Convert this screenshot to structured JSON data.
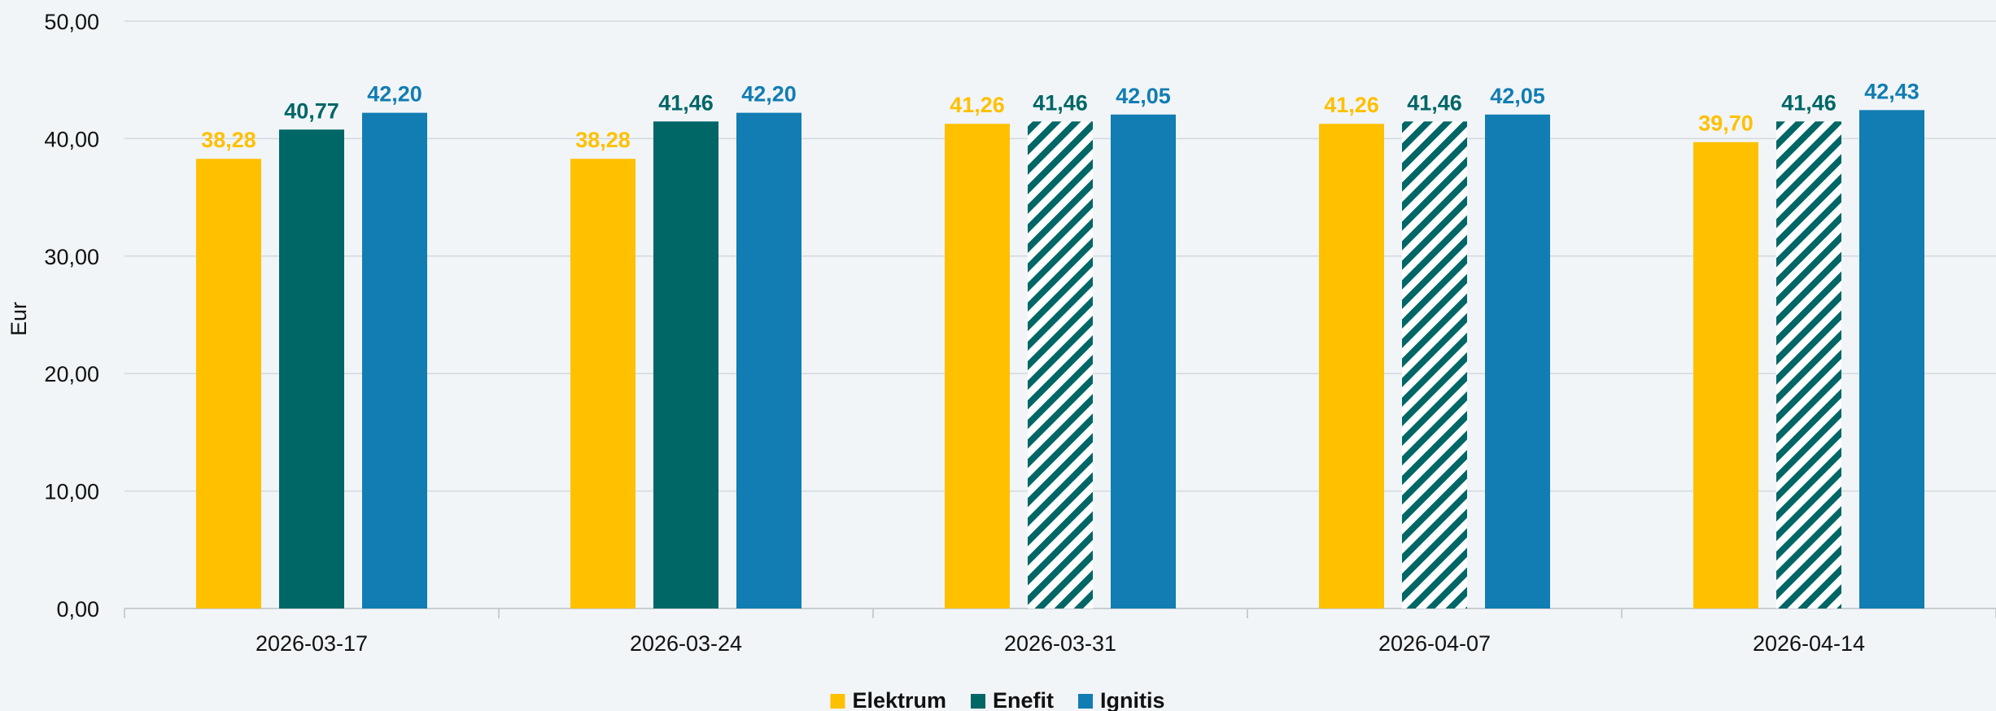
{
  "chart_data": {
    "type": "bar",
    "title": "",
    "xlabel": "",
    "ylabel": "Eur",
    "ylim": [
      0,
      50
    ],
    "yticks": [
      "0,00",
      "10,00",
      "20,00",
      "30,00",
      "40,00",
      "50,00"
    ],
    "ytick_values": [
      0,
      10,
      20,
      30,
      40,
      50
    ],
    "grid": "horizontal",
    "legend_position": "bottom-center",
    "categories": [
      "2026-03-17",
      "2026-03-24",
      "2026-03-31",
      "2026-04-07",
      "2026-04-14"
    ],
    "series": [
      {
        "name": "Elektrum",
        "color": "#ffc000",
        "values": [
          38.28,
          38.28,
          41.26,
          41.26,
          39.7
        ],
        "labels": [
          "38,28",
          "38,28",
          "41,26",
          "41,26",
          "39,70"
        ],
        "hatched": [
          false,
          false,
          false,
          false,
          false
        ]
      },
      {
        "name": "Enefit",
        "color": "#006666",
        "values": [
          40.77,
          41.46,
          41.46,
          41.46,
          41.46
        ],
        "labels": [
          "40,77",
          "41,46",
          "41,46",
          "41,46",
          "41,46"
        ],
        "hatched": [
          false,
          false,
          true,
          true,
          true
        ]
      },
      {
        "name": "Ignitis",
        "color": "#117db2",
        "values": [
          42.2,
          42.2,
          42.05,
          42.05,
          42.43
        ],
        "labels": [
          "42,20",
          "42,20",
          "42,05",
          "42,05",
          "42,43"
        ],
        "hatched": [
          false,
          false,
          false,
          false,
          false
        ]
      }
    ]
  }
}
